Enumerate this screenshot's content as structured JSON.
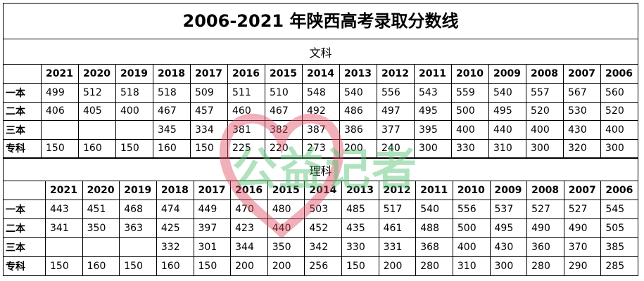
{
  "title": "2006-2021 年陕西高考录取分数线",
  "watermark": "公益记者",
  "sections": [
    {
      "name": "文科",
      "years": [
        2021,
        2020,
        2019,
        2018,
        2017,
        2016,
        2015,
        2014,
        2013,
        2012,
        2011,
        2010,
        2009,
        2008,
        2007,
        2006
      ],
      "rows": [
        {
          "label": "一本",
          "values": [
            499,
            512,
            518,
            518,
            509,
            511,
            510,
            548,
            540,
            556,
            543,
            559,
            540,
            557,
            567,
            560
          ]
        },
        {
          "label": "二本",
          "values": [
            406,
            405,
            400,
            467,
            457,
            460,
            467,
            492,
            486,
            497,
            495,
            500,
            495,
            520,
            530,
            520
          ]
        },
        {
          "label": "三本",
          "values": [
            null,
            null,
            null,
            345,
            334,
            381,
            382,
            387,
            386,
            377,
            395,
            400,
            440,
            400,
            430,
            400
          ]
        },
        {
          "label": "专科",
          "values": [
            150,
            160,
            150,
            160,
            150,
            225,
            220,
            273,
            200,
            240,
            300,
            330,
            310,
            300,
            320,
            300
          ]
        }
      ]
    },
    {
      "name": "理科",
      "years": [
        2021,
        2020,
        2019,
        2018,
        2017,
        2016,
        2015,
        2014,
        2013,
        2012,
        2011,
        2010,
        2009,
        2008,
        2007,
        2006
      ],
      "rows": [
        {
          "label": "一本",
          "values": [
            443,
            451,
            468,
            474,
            449,
            470,
            480,
            503,
            485,
            517,
            540,
            556,
            537,
            527,
            527,
            545
          ]
        },
        {
          "label": "二本",
          "values": [
            341,
            350,
            363,
            425,
            397,
            423,
            440,
            452,
            435,
            461,
            488,
            500,
            495,
            490,
            490,
            505
          ]
        },
        {
          "label": "三本",
          "values": [
            null,
            null,
            null,
            332,
            301,
            344,
            350,
            342,
            330,
            331,
            368,
            400,
            430,
            360,
            370,
            385
          ]
        },
        {
          "label": "专科",
          "values": [
            150,
            160,
            150,
            160,
            150,
            200,
            200,
            256,
            150,
            200,
            280,
            310,
            300,
            280,
            290,
            285
          ]
        }
      ]
    }
  ]
}
